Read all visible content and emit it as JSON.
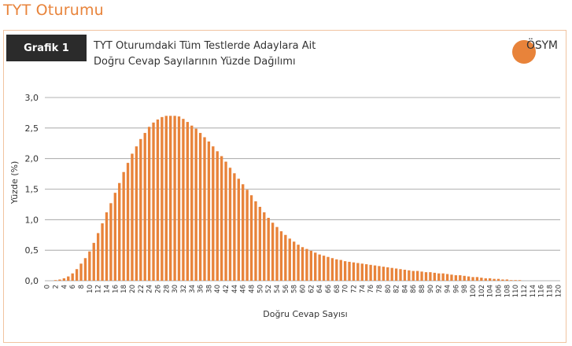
{
  "section_title": "TYT Oturumu",
  "badge_label": "Grafik 1",
  "logo_text": "ÖSYM",
  "colors": {
    "accent": "#e8833a",
    "bar": "#e8833a",
    "badge_bg": "#2b2b2b",
    "grid": "#9a9a9a"
  },
  "chart_data": {
    "type": "bar",
    "title_line1": "TYT Oturumdaki Tüm Testlerde Adaylara Ait",
    "title_line2": "Doğru Cevap Sayılarının Yüzde Dağılımı",
    "xlabel": "Doğru Cevap Sayısı",
    "ylabel": "Yüzde (%)",
    "ylim": [
      0,
      3.0
    ],
    "yticks": [
      "0,0",
      "0,5",
      "1,0",
      "1,5",
      "2,0",
      "2,5",
      "3,0"
    ],
    "grid": true,
    "x_tick_step": 2,
    "x": [
      0,
      1,
      2,
      3,
      4,
      5,
      6,
      7,
      8,
      9,
      10,
      11,
      12,
      13,
      14,
      15,
      16,
      17,
      18,
      19,
      20,
      21,
      22,
      23,
      24,
      25,
      26,
      27,
      28,
      29,
      30,
      31,
      32,
      33,
      34,
      35,
      36,
      37,
      38,
      39,
      40,
      41,
      42,
      43,
      44,
      45,
      46,
      47,
      48,
      49,
      50,
      51,
      52,
      53,
      54,
      55,
      56,
      57,
      58,
      59,
      60,
      61,
      62,
      63,
      64,
      65,
      66,
      67,
      68,
      69,
      70,
      71,
      72,
      73,
      74,
      75,
      76,
      77,
      78,
      79,
      80,
      81,
      82,
      83,
      84,
      85,
      86,
      87,
      88,
      89,
      90,
      91,
      92,
      93,
      94,
      95,
      96,
      97,
      98,
      99,
      100,
      101,
      102,
      103,
      104,
      105,
      106,
      107,
      108,
      109,
      110,
      111,
      112,
      113,
      114,
      115,
      116,
      117,
      118,
      119,
      120
    ],
    "values": [
      0.0,
      0.0,
      0.01,
      0.02,
      0.04,
      0.07,
      0.12,
      0.19,
      0.28,
      0.37,
      0.48,
      0.62,
      0.78,
      0.94,
      1.12,
      1.27,
      1.44,
      1.6,
      1.78,
      1.93,
      2.08,
      2.2,
      2.32,
      2.42,
      2.52,
      2.59,
      2.64,
      2.68,
      2.7,
      2.7,
      2.7,
      2.69,
      2.65,
      2.6,
      2.54,
      2.49,
      2.42,
      2.35,
      2.28,
      2.2,
      2.12,
      2.04,
      1.95,
      1.85,
      1.76,
      1.67,
      1.58,
      1.49,
      1.4,
      1.3,
      1.21,
      1.12,
      1.03,
      0.95,
      0.88,
      0.81,
      0.75,
      0.69,
      0.64,
      0.59,
      0.55,
      0.52,
      0.49,
      0.46,
      0.43,
      0.41,
      0.39,
      0.37,
      0.35,
      0.34,
      0.32,
      0.31,
      0.3,
      0.29,
      0.28,
      0.27,
      0.26,
      0.25,
      0.24,
      0.23,
      0.22,
      0.21,
      0.2,
      0.19,
      0.18,
      0.17,
      0.16,
      0.16,
      0.15,
      0.14,
      0.14,
      0.13,
      0.12,
      0.12,
      0.11,
      0.1,
      0.09,
      0.09,
      0.08,
      0.07,
      0.06,
      0.06,
      0.05,
      0.04,
      0.04,
      0.03,
      0.03,
      0.02,
      0.02,
      0.01,
      0.01,
      0.01,
      0.0,
      0.0,
      0.0,
      0.0,
      0.0,
      0.0,
      0.0,
      0.0,
      0.0
    ]
  }
}
